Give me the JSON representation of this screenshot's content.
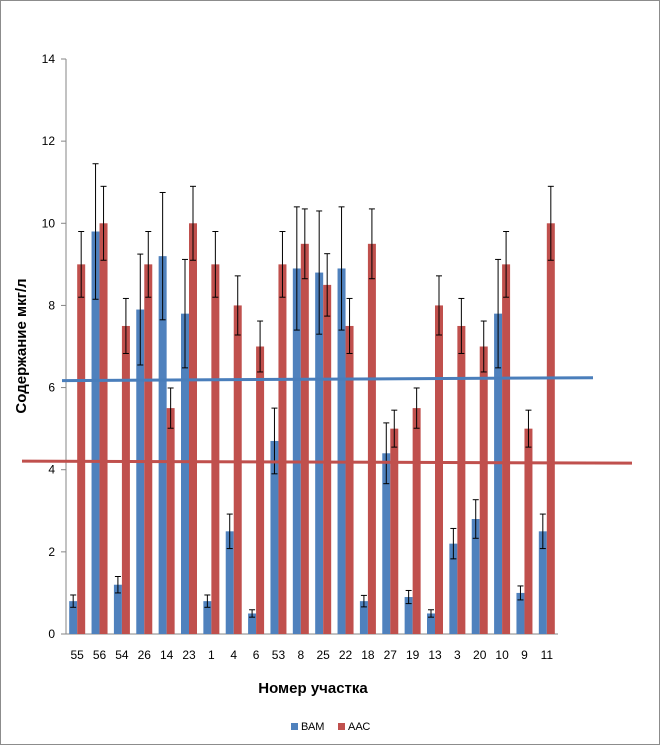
{
  "chart_data": {
    "type": "bar",
    "title": "",
    "xlabel": "Номер участка",
    "ylabel": "Содержание мкг/л",
    "ylim": [
      0,
      14
    ],
    "yticks": [
      0,
      2,
      4,
      6,
      8,
      10,
      12,
      14
    ],
    "grid": false,
    "legend_position": "bottom",
    "categories": [
      "55",
      "56",
      "54",
      "26",
      "14",
      "23",
      "1",
      "4",
      "6",
      "53",
      "8",
      "25",
      "22",
      "18",
      "27",
      "19",
      "13",
      "3",
      "20",
      "10",
      "9",
      "11"
    ],
    "series": [
      {
        "name": "ВАМ",
        "color": "#4f81bd",
        "values": [
          0.8,
          9.8,
          1.2,
          7.9,
          9.2,
          7.8,
          0.8,
          2.5,
          0.5,
          4.7,
          8.9,
          8.8,
          8.9,
          0.8,
          4.4,
          0.9,
          0.5,
          2.2,
          2.8,
          7.8,
          1.0,
          2.5
        ],
        "error": [
          0.15,
          1.65,
          0.2,
          1.35,
          1.55,
          1.32,
          0.15,
          0.42,
          0.09,
          0.8,
          1.5,
          1.5,
          1.5,
          0.14,
          0.74,
          0.16,
          0.09,
          0.37,
          0.47,
          1.32,
          0.17,
          0.42
        ]
      },
      {
        "name": "ААС",
        "color": "#c0504d",
        "values": [
          9.0,
          10.0,
          7.5,
          9.0,
          5.5,
          10.0,
          9.0,
          8.0,
          7.0,
          9.0,
          9.5,
          8.5,
          7.5,
          9.5,
          5.0,
          5.5,
          8.0,
          7.5,
          7.0,
          9.0,
          5.0,
          10.0
        ],
        "error": [
          0.8,
          0.9,
          0.67,
          0.8,
          0.49,
          0.9,
          0.8,
          0.72,
          0.62,
          0.8,
          0.85,
          0.76,
          0.67,
          0.85,
          0.45,
          0.49,
          0.72,
          0.67,
          0.62,
          0.8,
          0.45,
          0.9
        ]
      }
    ],
    "reference_lines": [
      {
        "color": "#4a7ebb",
        "y_start": 6.17,
        "y_end": 6.24
      },
      {
        "color": "#c0504d",
        "y_start": 4.21,
        "y_end": 4.16
      }
    ]
  }
}
